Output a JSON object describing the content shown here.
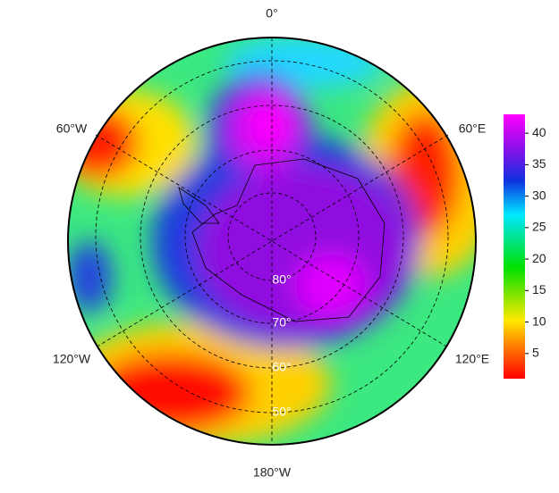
{
  "map": {
    "longitude_labels": [
      "0°",
      "60°E",
      "120°E",
      "180°W",
      "120°W",
      "60°W"
    ],
    "latitude_labels": [
      "80°",
      "70°",
      "60°",
      "50°"
    ]
  },
  "colorbar": {
    "range": [
      1,
      43
    ],
    "ticks": [
      5,
      10,
      15,
      20,
      25,
      30,
      35,
      40
    ]
  }
}
